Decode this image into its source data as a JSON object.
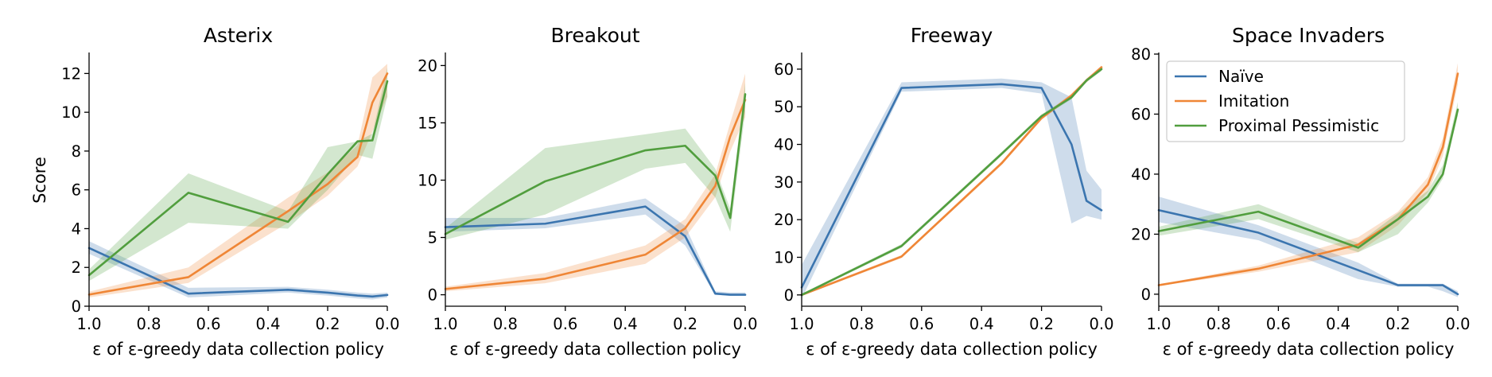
{
  "chart_data": [
    {
      "type": "line",
      "title": "Asterix",
      "xlabel": "ε of ε-greedy data collection policy",
      "ylabel": "Score",
      "xlim": [
        1.0,
        0.0
      ],
      "ylim": [
        0,
        13
      ],
      "xticks": [
        1.0,
        0.8,
        0.6,
        0.4,
        0.2,
        0.0
      ],
      "xtick_labels": [
        "1.0",
        "0.8",
        "0.6",
        "0.4",
        "0.2",
        "0.0"
      ],
      "yticks": [
        0,
        2,
        4,
        6,
        8,
        10,
        12
      ],
      "ytick_labels": [
        "0",
        "2",
        "4",
        "6",
        "8",
        "10",
        "12"
      ],
      "x": [
        1.0,
        0.667,
        0.333,
        0.2,
        0.1,
        0.05,
        0.0
      ],
      "series": [
        {
          "name": "Naïve",
          "values": [
            3.0,
            0.65,
            0.85,
            0.7,
            0.55,
            0.5,
            0.58
          ],
          "lower": [
            2.7,
            0.45,
            0.7,
            0.55,
            0.4,
            0.35,
            0.45
          ],
          "upper": [
            3.35,
            0.95,
            1.0,
            0.85,
            0.7,
            0.65,
            0.7
          ]
        },
        {
          "name": "Imitation",
          "values": [
            0.6,
            1.5,
            4.9,
            6.3,
            7.7,
            10.5,
            12.0
          ],
          "lower": [
            0.45,
            1.2,
            4.3,
            5.7,
            7.2,
            9.0,
            10.8
          ],
          "upper": [
            0.75,
            2.0,
            5.6,
            6.9,
            8.3,
            11.8,
            12.5
          ]
        },
        {
          "name": "Proximal Pessimistic",
          "values": [
            1.6,
            5.85,
            4.35,
            6.8,
            8.5,
            8.55,
            11.6
          ],
          "lower": [
            1.3,
            4.3,
            4.0,
            6.0,
            7.8,
            7.6,
            10.8
          ],
          "upper": [
            1.9,
            6.85,
            4.9,
            8.2,
            8.5,
            8.9,
            12.3
          ]
        }
      ]
    },
    {
      "type": "line",
      "title": "Breakout",
      "xlabel": "ε of ε-greedy data collection policy",
      "ylabel": "",
      "xlim": [
        1.0,
        0.0
      ],
      "ylim": [
        -1,
        21
      ],
      "xticks": [
        1.0,
        0.8,
        0.6,
        0.4,
        0.2,
        0.0
      ],
      "xtick_labels": [
        "1.0",
        "0.8",
        "0.6",
        "0.4",
        "0.2",
        "0.0"
      ],
      "yticks": [
        0,
        5,
        10,
        15,
        20
      ],
      "ytick_labels": [
        "0",
        "5",
        "10",
        "15",
        "20"
      ],
      "x": [
        1.0,
        0.667,
        0.333,
        0.2,
        0.1,
        0.05,
        0.0
      ],
      "series": [
        {
          "name": "Naïve",
          "values": [
            5.9,
            6.2,
            7.7,
            5.1,
            0.1,
            0.0,
            0.0
          ],
          "lower": [
            5.5,
            5.8,
            7.0,
            4.3,
            0.0,
            -0.1,
            -0.1
          ],
          "upper": [
            6.7,
            6.7,
            8.4,
            6.0,
            0.3,
            0.2,
            0.2
          ]
        },
        {
          "name": "Imitation",
          "values": [
            0.5,
            1.4,
            3.5,
            5.8,
            9.5,
            13.8,
            17.0
          ],
          "lower": [
            0.3,
            1.0,
            2.7,
            5.0,
            8.5,
            12.5,
            15.5
          ],
          "upper": [
            0.7,
            1.9,
            4.3,
            6.6,
            10.5,
            15.0,
            19.3
          ]
        },
        {
          "name": "Proximal Pessimistic",
          "values": [
            5.3,
            9.9,
            12.6,
            13.0,
            10.4,
            6.7,
            17.5
          ],
          "lower": [
            4.8,
            7.0,
            11.0,
            11.5,
            8.5,
            5.5,
            16.0
          ],
          "upper": [
            5.8,
            12.8,
            14.0,
            14.5,
            11.0,
            7.5,
            18.5
          ]
        }
      ]
    },
    {
      "type": "line",
      "title": "Freeway",
      "xlabel": "ε of ε-greedy data collection policy",
      "ylabel": "",
      "xlim": [
        1.0,
        0.0
      ],
      "ylim": [
        -3,
        64
      ],
      "xticks": [
        1.0,
        0.8,
        0.6,
        0.4,
        0.2,
        0.0
      ],
      "xtick_labels": [
        "1.0",
        "0.8",
        "0.6",
        "0.4",
        "0.2",
        "0.0"
      ],
      "yticks": [
        0,
        10,
        20,
        30,
        40,
        50,
        60
      ],
      "ytick_labels": [
        "0",
        "10",
        "20",
        "30",
        "40",
        "50",
        "60"
      ],
      "x": [
        1.0,
        0.667,
        0.333,
        0.2,
        0.1,
        0.05,
        0.0
      ],
      "series": [
        {
          "name": "Naïve",
          "values": [
            2.0,
            55.0,
            56.0,
            55.0,
            40.0,
            25.0,
            22.5
          ],
          "lower": [
            -1.0,
            54.0,
            55.0,
            53.5,
            19.0,
            21.0,
            20.0
          ],
          "upper": [
            8.0,
            56.5,
            57.5,
            56.5,
            52.5,
            33.0,
            28.0
          ]
        },
        {
          "name": "Imitation",
          "values": [
            0.0,
            10.2,
            35.0,
            47.0,
            53.0,
            57.0,
            60.5
          ],
          "lower": [
            -0.3,
            9.8,
            34.5,
            46.5,
            52.5,
            56.5,
            60.0
          ],
          "upper": [
            0.3,
            10.6,
            35.5,
            47.5,
            53.5,
            57.5,
            61.0
          ]
        },
        {
          "name": "Proximal Pessimistic",
          "values": [
            0.0,
            13.0,
            37.5,
            47.5,
            52.5,
            57.0,
            60.0
          ],
          "lower": [
            -0.3,
            12.5,
            37.0,
            47.0,
            52.0,
            56.5,
            59.5
          ],
          "upper": [
            0.3,
            13.5,
            38.0,
            48.0,
            53.0,
            57.5,
            60.5
          ]
        }
      ]
    },
    {
      "type": "line",
      "title": "Space Invaders",
      "xlabel": "ε of ε-greedy data collection policy",
      "ylabel": "",
      "xlim": [
        1.0,
        0.0
      ],
      "ylim": [
        -4,
        80
      ],
      "xticks": [
        1.0,
        0.8,
        0.6,
        0.4,
        0.2,
        0.0
      ],
      "xtick_labels": [
        "1.0",
        "0.8",
        "0.6",
        "0.4",
        "0.2",
        "0.0"
      ],
      "yticks": [
        0,
        20,
        40,
        60,
        80
      ],
      "ytick_labels": [
        "0",
        "20",
        "40",
        "60",
        "80"
      ],
      "x": [
        1.0,
        0.667,
        0.333,
        0.2,
        0.1,
        0.05,
        0.0
      ],
      "series": [
        {
          "name": "Naïve",
          "values": [
            28.0,
            20.5,
            8.0,
            3.0,
            3.0,
            3.0,
            0.0
          ],
          "lower": [
            24.0,
            18.0,
            5.0,
            2.5,
            2.5,
            1.0,
            -1.0
          ],
          "upper": [
            32.5,
            23.0,
            10.5,
            3.5,
            3.5,
            3.5,
            1.0
          ]
        },
        {
          "name": "Imitation",
          "values": [
            3.0,
            8.5,
            16.5,
            25.0,
            36.5,
            49.0,
            73.5
          ],
          "lower": [
            2.8,
            7.5,
            14.0,
            23.0,
            34.0,
            46.0,
            70.0
          ],
          "upper": [
            3.2,
            9.5,
            19.0,
            27.5,
            39.0,
            52.0,
            77.0
          ]
        },
        {
          "name": "Proximal Pessimistic",
          "values": [
            21.0,
            27.5,
            15.5,
            25.0,
            32.5,
            40.0,
            61.5
          ],
          "lower": [
            19.5,
            25.0,
            14.0,
            20.0,
            30.5,
            38.5,
            59.5
          ],
          "upper": [
            22.5,
            30.0,
            17.0,
            27.0,
            34.5,
            43.0,
            64.0
          ]
        }
      ]
    }
  ],
  "legend": {
    "placement": "top-left of last panel",
    "entries": [
      {
        "label": "Naïve",
        "color": "#3b75af"
      },
      {
        "label": "Imitation",
        "color": "#ef8636"
      },
      {
        "label": "Proximal Pessimistic",
        "color": "#519e3e"
      }
    ]
  },
  "colors": {
    "naive": "#3b75af",
    "imitation": "#ef8636",
    "proximal_pessimistic": "#519e3e"
  }
}
